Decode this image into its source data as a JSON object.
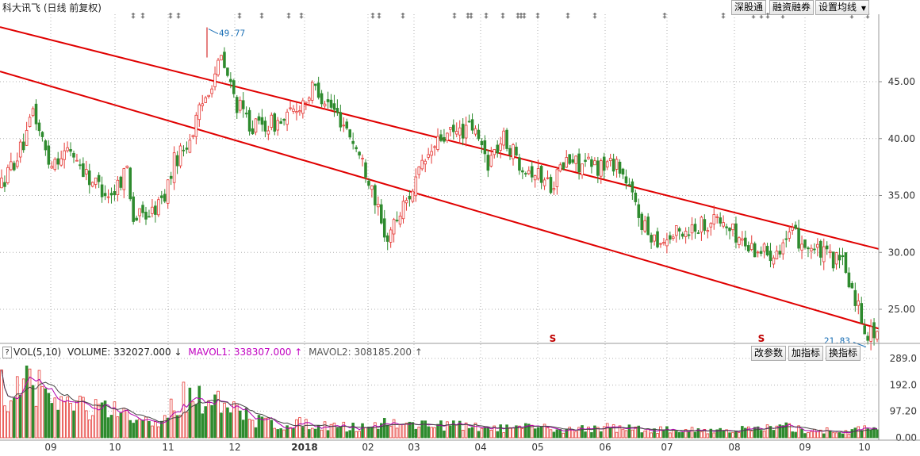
{
  "header": {
    "title": "科大讯飞 (日线 前复权)",
    "buttons": [
      "深股通",
      "融资融券",
      "设置均线"
    ],
    "dropdown_glyph": "▼"
  },
  "volume_header": {
    "help": "?",
    "indicator": "VOL(5,10)",
    "volume_label": "VOLUME: 332027.000",
    "volume_arrow": "↓",
    "mavol1_label": "MAVOL1: 338307.000",
    "mavol1_arrow": "↑",
    "mavol2_label": "MAVOL2: 308185.200",
    "mavol2_arrow": "↑",
    "buttons": [
      "改参数",
      "加指标",
      "换指标"
    ]
  },
  "annotations": {
    "high_label": "49.77",
    "low_label": "21.83",
    "s_marker": "S"
  },
  "colors": {
    "up": "#e53935",
    "down": "#2e8b2e",
    "trend": "#e00000",
    "mavol1": "#b000b0",
    "mavol2": "#444444",
    "annotation": "#1a6fb5",
    "grid": "#b0b0b0"
  },
  "chart_data": [
    {
      "type": "candlestick",
      "ylim": [
        22,
        49.77
      ],
      "yticks": [
        25.0,
        30.0,
        35.0,
        40.0,
        45.0
      ],
      "ytick_labels": [
        "25.00",
        "30.00",
        "35.00",
        "40.00",
        "45.00"
      ],
      "xtick_labels": [
        "09",
        "10",
        "11",
        "12",
        "2018",
        "02",
        "03",
        "04",
        "05",
        "06",
        "07",
        "08",
        "09",
        "10"
      ],
      "n_bars": 280,
      "trend_channel": {
        "upper": [
          [
            0,
            49.8
          ],
          [
            280,
            30.3
          ]
        ],
        "lower": [
          [
            0,
            45.9
          ],
          [
            280,
            23.3
          ]
        ]
      },
      "keypoints": [
        [
          0,
          36
        ],
        [
          8,
          40
        ],
        [
          10,
          42.5
        ],
        [
          15,
          38
        ],
        [
          22,
          39
        ],
        [
          28,
          36.5
        ],
        [
          35,
          35
        ],
        [
          40,
          37.5
        ],
        [
          42,
          33
        ],
        [
          48,
          33.5
        ],
        [
          52,
          35
        ],
        [
          55,
          38
        ],
        [
          60,
          40
        ],
        [
          66,
          44.5
        ],
        [
          70,
          47
        ],
        [
          75,
          43
        ],
        [
          80,
          41
        ],
        [
          90,
          41.5
        ],
        [
          100,
          44.5
        ],
        [
          110,
          41
        ],
        [
          118,
          36
        ],
        [
          122,
          31
        ],
        [
          128,
          34
        ],
        [
          135,
          38
        ],
        [
          140,
          40
        ],
        [
          150,
          41
        ],
        [
          155,
          38
        ],
        [
          160,
          40
        ],
        [
          165,
          38
        ],
        [
          175,
          36
        ],
        [
          180,
          38
        ],
        [
          190,
          37.5
        ],
        [
          196,
          38
        ],
        [
          200,
          35.5
        ],
        [
          205,
          32
        ],
        [
          210,
          31
        ],
        [
          218,
          32
        ],
        [
          228,
          33
        ],
        [
          238,
          30.5
        ],
        [
          245,
          30
        ],
        [
          252,
          31.5
        ],
        [
          260,
          30
        ],
        [
          268,
          29
        ],
        [
          272,
          26
        ],
        [
          276,
          22.8
        ],
        [
          280,
          23.2
        ]
      ],
      "high": 49.77,
      "low": 21.83
    },
    {
      "type": "bar",
      "title": "VOL(5,10)",
      "ylim": [
        0,
        289
      ],
      "yticks": [
        0,
        97.2,
        192.0,
        289.0
      ],
      "ytick_labels": [
        "0.00",
        "97.20",
        "192.0",
        "289.0"
      ],
      "series": [
        {
          "name": "VOLUME",
          "last": 332027.0
        },
        {
          "name": "MAVOL1",
          "last": 338307.0
        },
        {
          "name": "MAVOL2",
          "last": 308185.2
        }
      ],
      "keypoints": [
        [
          0,
          190
        ],
        [
          5,
          170
        ],
        [
          10,
          240
        ],
        [
          15,
          150
        ],
        [
          20,
          130
        ],
        [
          25,
          120
        ],
        [
          30,
          110
        ],
        [
          35,
          100
        ],
        [
          40,
          75
        ],
        [
          45,
          60
        ],
        [
          50,
          55
        ],
        [
          55,
          120
        ],
        [
          60,
          190
        ],
        [
          65,
          150
        ],
        [
          70,
          120
        ],
        [
          75,
          95
        ],
        [
          80,
          70
        ],
        [
          85,
          60
        ],
        [
          90,
          50
        ],
        [
          100,
          55
        ],
        [
          110,
          40
        ],
        [
          120,
          50
        ],
        [
          125,
          60
        ],
        [
          130,
          45
        ],
        [
          135,
          55
        ],
        [
          145,
          45
        ],
        [
          150,
          40
        ],
        [
          160,
          35
        ],
        [
          170,
          38
        ],
        [
          180,
          30
        ],
        [
          190,
          40
        ],
        [
          200,
          35
        ],
        [
          210,
          30
        ],
        [
          220,
          28
        ],
        [
          230,
          30
        ],
        [
          240,
          32
        ],
        [
          250,
          40
        ],
        [
          255,
          30
        ],
        [
          260,
          28
        ],
        [
          270,
          25
        ],
        [
          276,
          35
        ],
        [
          280,
          30
        ]
      ]
    }
  ]
}
